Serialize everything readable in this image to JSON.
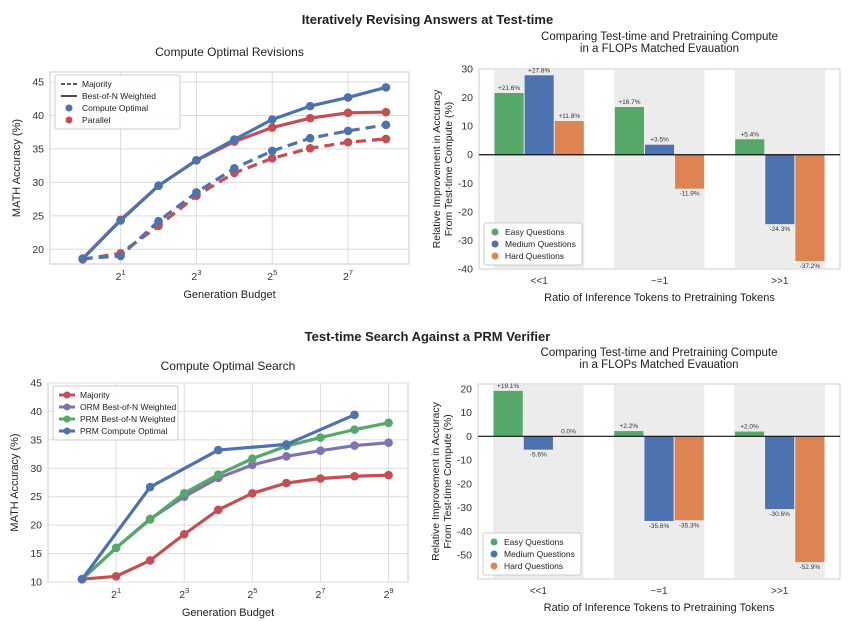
{
  "sections": [
    {
      "title": "Iteratively Revising Answers at Test-time"
    },
    {
      "title": "Test-time Search Against a PRM Verifier"
    }
  ],
  "chart_data": [
    {
      "type": "line",
      "title": "Compute Optimal Revisions",
      "xlabel": "Generation Budget",
      "ylabel": "MATH Accuracy (%)",
      "x_scale": "log2",
      "x": [
        1,
        2,
        4,
        8,
        16,
        32,
        64,
        128,
        256
      ],
      "xticks": [
        2,
        8,
        32,
        128
      ],
      "xtick_labels": [
        {
          "base": "2",
          "exp": "1"
        },
        {
          "base": "2",
          "exp": "3"
        },
        {
          "base": "2",
          "exp": "5"
        },
        {
          "base": "2",
          "exp": "7"
        }
      ],
      "xlim": [
        0.55,
        390
      ],
      "ylim": [
        17.8,
        46.5
      ],
      "yticks": [
        20,
        25,
        30,
        35,
        40,
        45
      ],
      "grid": true,
      "legend_position": "top-left",
      "legend": [
        {
          "label": "Majority",
          "kind": "line-dashed",
          "color": "#222222"
        },
        {
          "label": "Best-of-N Weighted",
          "kind": "line-solid",
          "color": "#222222"
        },
        {
          "label": "Compute Optimal",
          "kind": "dot",
          "color": "#4c72b0"
        },
        {
          "label": "Parallel",
          "kind": "dot",
          "color": "#c44e52"
        }
      ],
      "series": [
        {
          "color": "#c44e52",
          "style": "solid",
          "values": [
            18.6,
            24.4,
            29.5,
            33.3,
            36.1,
            38.2,
            39.6,
            40.4,
            40.5
          ]
        },
        {
          "color": "#4c72b0",
          "style": "solid",
          "values": [
            18.6,
            24.3,
            29.5,
            33.3,
            36.4,
            39.4,
            41.4,
            42.7,
            44.2
          ]
        },
        {
          "color": "#c44e52",
          "style": "dashed",
          "values": [
            18.5,
            19.4,
            23.5,
            28.0,
            31.4,
            33.6,
            35.1,
            36.0,
            36.5
          ]
        },
        {
          "color": "#4c72b0",
          "style": "dashed",
          "values": [
            18.6,
            19.0,
            24.2,
            28.5,
            32.1,
            34.7,
            36.6,
            37.7,
            38.6
          ]
        }
      ]
    },
    {
      "type": "bar",
      "title_lines": [
        "Comparing Test-time and Pretraining Compute",
        "in a FLOPs Matched Evauation"
      ],
      "xlabel": "Ratio of Inference Tokens to Pretraining Tokens",
      "ylabel_lines": [
        "Relative Improvement in Accuracy",
        "From Test-time Compute (%)"
      ],
      "categories": [
        "<<1",
        "~=1",
        ">>1"
      ],
      "ylim": [
        -40,
        30
      ],
      "yticks": [
        -40,
        -30,
        -20,
        -10,
        0,
        10,
        20,
        30
      ],
      "legend_position": "bottom-left",
      "series": [
        {
          "name": "Easy Questions",
          "color": "#55a868",
          "values": [
            21.6,
            16.7,
            5.4
          ],
          "labels": [
            "+21.6%",
            "+16.7%",
            "+5.4%"
          ]
        },
        {
          "name": "Medium Questions",
          "color": "#4c72b0",
          "values": [
            27.8,
            3.5,
            -24.3
          ],
          "labels": [
            "+27.8%",
            "+3.5%",
            "-24.3%"
          ]
        },
        {
          "name": "Hard Questions",
          "color": "#dd8452",
          "values": [
            11.8,
            -11.9,
            -37.2
          ],
          "labels": [
            "+11.8%",
            "-11.9%",
            "-37.2%"
          ]
        }
      ]
    },
    {
      "type": "line",
      "title": "Compute Optimal Search",
      "xlabel": "Generation Budget",
      "ylabel": "MATH Accuracy (%)",
      "x_scale": "log2",
      "x": [
        1,
        2,
        4,
        8,
        16,
        32,
        64,
        128,
        256,
        512
      ],
      "xticks": [
        2,
        8,
        32,
        128,
        512
      ],
      "xtick_labels": [
        {
          "base": "2",
          "exp": "1"
        },
        {
          "base": "2",
          "exp": "3"
        },
        {
          "base": "2",
          "exp": "5"
        },
        {
          "base": "2",
          "exp": "7"
        },
        {
          "base": "2",
          "exp": "9"
        }
      ],
      "xlim": [
        0.5,
        760
      ],
      "ylim": [
        10,
        45
      ],
      "yticks": [
        10,
        15,
        20,
        25,
        30,
        35,
        40,
        45
      ],
      "grid": true,
      "legend_position": "top-left",
      "legend": [
        {
          "label": "Majority",
          "kind": "line-dot",
          "color": "#c44e52"
        },
        {
          "label": "ORM Best-of-N Weighted",
          "kind": "line-dot",
          "color": "#8172b2"
        },
        {
          "label": "PRM Best-of-N Weighted",
          "kind": "line-dot",
          "color": "#55a868"
        },
        {
          "label": "PRM Compute Optimal",
          "kind": "line-dot",
          "color": "#4c72b0"
        }
      ],
      "series": [
        {
          "color": "#c44e52",
          "x": [
            1,
            2,
            4,
            8,
            16,
            32,
            64,
            128,
            256,
            512
          ],
          "values": [
            10.5,
            11.0,
            13.8,
            18.4,
            22.7,
            25.6,
            27.4,
            28.2,
            28.6,
            28.8
          ]
        },
        {
          "color": "#8172b2",
          "x": [
            1,
            2,
            4,
            8,
            16,
            32,
            64,
            128,
            256,
            512
          ],
          "values": [
            10.5,
            16.0,
            21.1,
            25.0,
            28.3,
            30.6,
            32.1,
            33.1,
            34.0,
            34.5
          ]
        },
        {
          "color": "#55a868",
          "x": [
            1,
            2,
            4,
            8,
            16,
            32,
            64,
            128,
            256,
            512
          ],
          "values": [
            10.5,
            16.0,
            21.0,
            25.6,
            28.9,
            31.7,
            33.9,
            35.4,
            36.8,
            38.0
          ]
        },
        {
          "color": "#4c72b0",
          "x": [
            1,
            4,
            16,
            64,
            256
          ],
          "values": [
            10.5,
            26.7,
            33.2,
            34.2,
            39.4
          ]
        }
      ]
    },
    {
      "type": "bar",
      "title_lines": [
        "Comparing Test-time and Pretraining Compute",
        "in a FLOPs Matched Evauation"
      ],
      "xlabel": "Ratio of Inference Tokens to Pretraining Tokens",
      "ylabel_lines": [
        "Relative Improvement in Accuracy",
        "From Test-time Compute (%)"
      ],
      "categories": [
        "<<1",
        "~=1",
        ">>1"
      ],
      "ylim": [
        -60,
        22
      ],
      "yticks": [
        -50,
        -40,
        -30,
        -20,
        -10,
        0,
        10,
        20
      ],
      "legend_position": "bottom-left",
      "series": [
        {
          "name": "Easy Questions",
          "color": "#55a868",
          "values": [
            19.1,
            2.2,
            2.0
          ],
          "labels": [
            "+19.1%",
            "+2.2%",
            "+2.0%"
          ]
        },
        {
          "name": "Medium Questions",
          "color": "#4c72b0",
          "values": [
            -5.6,
            -35.6,
            -30.6
          ],
          "labels": [
            "-5.6%",
            "-35.6%",
            "-30.6%"
          ]
        },
        {
          "name": "Hard Questions",
          "color": "#dd8452",
          "values": [
            0.0,
            -35.3,
            -52.9
          ],
          "labels": [
            "0.0%",
            "-35.3%",
            "-52.9%"
          ]
        }
      ]
    }
  ]
}
